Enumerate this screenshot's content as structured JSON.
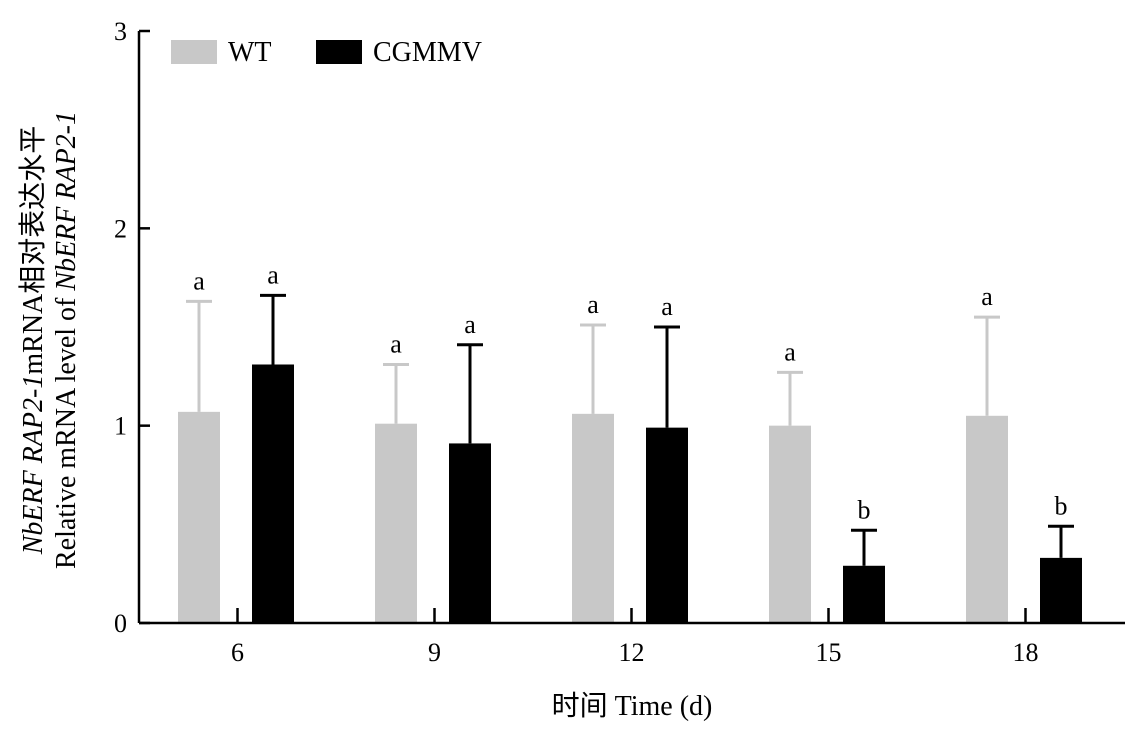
{
  "chart_data": {
    "type": "bar",
    "categories": [
      "6",
      "9",
      "12",
      "15",
      "18"
    ],
    "series": [
      {
        "name": "WT",
        "color": "#c8c8c8",
        "values": [
          1.07,
          1.01,
          1.06,
          1.0,
          1.05
        ],
        "errors": [
          0.56,
          0.3,
          0.45,
          0.27,
          0.5
        ],
        "significance": [
          "a",
          "a",
          "a",
          "a",
          "a"
        ]
      },
      {
        "name": "CGMMV",
        "color": "#000000",
        "values": [
          1.31,
          0.91,
          0.99,
          0.29,
          0.33
        ],
        "errors": [
          0.35,
          0.5,
          0.51,
          0.18,
          0.16
        ],
        "significance": [
          "a",
          "a",
          "a",
          "b",
          "b"
        ]
      }
    ],
    "xlabel": "时间 Time (d)",
    "ylabel_line1": {
      "gene_italic": "NbERF RAP2-1",
      "rest": "mRNA相对表达水平"
    },
    "ylabel_line2": {
      "prefix": "Relative mRNA level of ",
      "gene_italic": "NbERF RAP2-1"
    },
    "ylim": [
      0,
      3
    ],
    "yticks": [
      "0",
      "1",
      "2",
      "3"
    ],
    "legend": {
      "placement": "top-left"
    },
    "grid": false
  }
}
